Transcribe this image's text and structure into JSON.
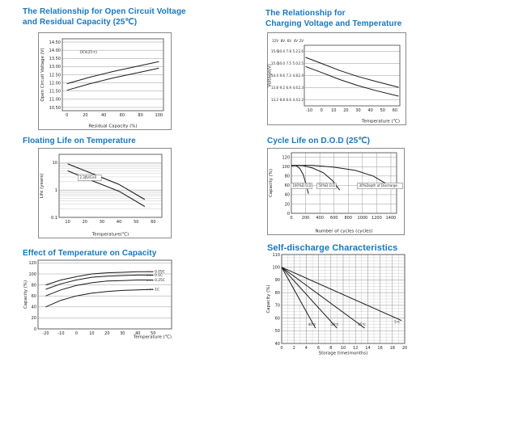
{
  "page": {
    "background": "#ffffff",
    "title_color": "#1777c0"
  },
  "sections": [
    {
      "lines": [
        "The Relationship for Open Circuit Voltage",
        "and Residual Capacity (25℃)"
      ]
    },
    {
      "lines": [
        "The Relationship for",
        "Charging Voltage and Temperature"
      ]
    },
    {
      "lines": [
        "Floating Life on Temperature"
      ]
    },
    {
      "lines": [
        "Cycle Life on D.O.D (25℃)"
      ]
    },
    {
      "lines": [
        "Effect of Temperature on Capacity"
      ]
    },
    {
      "lines": [
        "Self-discharge Characteristics"
      ]
    }
  ],
  "chart_data": [
    {
      "id": "c1",
      "type": "line",
      "title": "The Relationship for Open Circuit Voltage and Residual Capacity (25℃)",
      "xlabel": "Residual Capacity (%)",
      "ylabel": "Open Circuit Voltage (V)",
      "xlim": [
        -5,
        105
      ],
      "ylim": [
        10.3,
        14.7
      ],
      "xticks": [
        0,
        20,
        40,
        60,
        80,
        100
      ],
      "yticks": [
        14.5,
        14.0,
        13.5,
        13.0,
        12.5,
        12.0,
        11.5,
        11.0,
        10.5
      ],
      "ytick_labels": [
        "14.50",
        "14.00",
        "13.50",
        "13.00",
        "12.50",
        "12.00",
        "11.50",
        "11.00",
        "10.50"
      ],
      "grid": {
        "h_ticks": true
      },
      "series": [
        {
          "name": "upper",
          "points": [
            [
              0,
              11.95
            ],
            [
              25,
              12.35
            ],
            [
              50,
              12.7
            ],
            [
              75,
              13.0
            ],
            [
              100,
              13.3
            ]
          ]
        },
        {
          "name": "lower",
          "points": [
            [
              0,
              11.55
            ],
            [
              25,
              11.95
            ],
            [
              50,
              12.3
            ],
            [
              75,
              12.6
            ],
            [
              100,
              12.9
            ]
          ]
        }
      ],
      "annotations": [
        {
          "x": 14,
          "y": 13.8,
          "text": "OCV(25℃)",
          "fs": 4
        }
      ],
      "layout": {
        "outer_box": true,
        "margin": {
          "l": 30,
          "t": 8,
          "r": 10,
          "b": 24
        },
        "ylabel_x": 7
      }
    },
    {
      "id": "c2",
      "type": "line",
      "title": "The Relationship for Charging Voltage and Temperature",
      "xlabel": "Temperature (℃)",
      "ylabel": "Voltage(V)",
      "xlim": [
        -14,
        64
      ],
      "ylim": [
        12.9,
        15.9
      ],
      "xticks": [
        -10,
        0,
        10,
        20,
        30,
        40,
        50,
        60
      ],
      "yticks": [
        15.6,
        15.0,
        14.4,
        13.8,
        13.2
      ],
      "ytick_cols_header": [
        "12V",
        "8V",
        "6V",
        "4V",
        "2V"
      ],
      "ytick_rows": [
        [
          "15.6",
          "10.4",
          "7.8",
          "5.2",
          "2.6"
        ],
        [
          "15.0",
          "10.0",
          "7.5",
          "5.0",
          "2.5"
        ],
        [
          "14.4",
          "9.6",
          "7.2",
          "4.8",
          "2.4"
        ],
        [
          "13.8",
          "9.2",
          "6.9",
          "4.6",
          "2.3"
        ],
        [
          "13.2",
          "8.8",
          "6.6",
          "4.4",
          "2.2"
        ]
      ],
      "grid": {
        "h_ticks": true
      },
      "series": [
        {
          "name": "cycle use",
          "points": [
            [
              -13,
              15.3
            ],
            [
              0,
              15.0
            ],
            [
              15,
              14.65
            ],
            [
              30,
              14.35
            ],
            [
              45,
              14.1
            ],
            [
              63,
              13.82
            ]
          ]
        },
        {
          "name": "standby use",
          "points": [
            [
              -13,
              14.85
            ],
            [
              0,
              14.55
            ],
            [
              15,
              14.2
            ],
            [
              30,
              13.9
            ],
            [
              45,
              13.65
            ],
            [
              63,
              13.38
            ]
          ]
        }
      ],
      "annotations": [],
      "layout": {
        "outer_box": true,
        "margin": {
          "l": 46,
          "t": 16,
          "r": 8,
          "b": 24
        },
        "col_x": [
          14,
          22,
          30,
          38,
          45
        ],
        "header_y": 12,
        "ylabel_x": 4.5,
        "xlabel_end": true
      }
    },
    {
      "id": "c3",
      "type": "line",
      "title": "Floating Life on Temperature",
      "xlabel": "Temperature(℃)",
      "ylabel": "Life (years)",
      "xlim": [
        5,
        65
      ],
      "ylim": [
        0.1,
        20
      ],
      "yscale": "log",
      "xticks": [
        10,
        20,
        30,
        40,
        50,
        60
      ],
      "yticks": [
        10,
        1,
        0.1
      ],
      "ytick_labels": [
        "10",
        "1",
        "0.1"
      ],
      "grid": {
        "h_ticks": true,
        "log_minor": true
      },
      "series": [
        {
          "name": "upper",
          "points": [
            [
              10,
              9
            ],
            [
              25,
              3.8
            ],
            [
              40,
              1.6
            ],
            [
              55,
              0.45
            ]
          ],
          "width": 1.1
        },
        {
          "name": "lower",
          "points": [
            [
              10,
              5
            ],
            [
              25,
              2.1
            ],
            [
              40,
              0.9
            ],
            [
              55,
              0.25
            ]
          ],
          "width": 1.1
        }
      ],
      "annotations": [
        {
          "x": 17,
          "y": 2.6,
          "text": "2.30V/Cell",
          "fs": 4,
          "box": true
        }
      ],
      "layout": {
        "outer_box": true,
        "margin": {
          "l": 26,
          "t": 8,
          "r": 12,
          "b": 26
        },
        "ylabel_x": 6
      }
    },
    {
      "id": "c4",
      "type": "line",
      "title": "Cycle Life on D.O.D (25℃)",
      "xlabel": "Number of cycles (cycles)",
      "ylabel": "Capacity (%)",
      "xlim": [
        0,
        1480
      ],
      "ylim": [
        0,
        130
      ],
      "xticks": [
        0,
        200,
        400,
        600,
        800,
        1000,
        1200,
        1400
      ],
      "yticks": [
        0,
        20,
        40,
        60,
        80,
        100,
        120
      ],
      "grid": {
        "h_ticks": true,
        "v_ticks": true
      },
      "series": [
        {
          "name": "100% D.O.D",
          "points": [
            [
              0,
              102
            ],
            [
              60,
              103
            ],
            [
              120,
              96
            ],
            [
              170,
              82
            ],
            [
              210,
              60
            ],
            [
              240,
              42
            ]
          ]
        },
        {
          "name": "50% D.O.D",
          "points": [
            [
              0,
              102
            ],
            [
              150,
              103
            ],
            [
              300,
              97
            ],
            [
              450,
              87
            ],
            [
              580,
              70
            ],
            [
              680,
              50
            ]
          ]
        },
        {
          "name": "30% D.O.D",
          "points": [
            [
              0,
              103
            ],
            [
              300,
              103
            ],
            [
              600,
              99
            ],
            [
              900,
              92
            ],
            [
              1150,
              80
            ],
            [
              1350,
              62
            ],
            [
              1430,
              52
            ]
          ]
        }
      ],
      "annotations": [
        {
          "x": 15,
          "y": 57,
          "text": "100%D.O.D",
          "fs": 4,
          "box": true
        },
        {
          "x": 380,
          "y": 57,
          "text": "50%D.O.D",
          "fs": 4,
          "box": true
        },
        {
          "x": 950,
          "y": 57,
          "text": "30%Depth of Discharge",
          "fs": 4,
          "box": true
        }
      ],
      "layout": {
        "outer_box": true,
        "margin": {
          "l": 30,
          "t": 6,
          "r": 10,
          "b": 27
        },
        "ylabel_x": 6
      }
    },
    {
      "id": "c5",
      "type": "line",
      "title": "Effect of Temperature on Capacity",
      "xlabel": "Temperature  (℃)",
      "ylabel": "Capacity (%)",
      "xlim": [
        -25,
        62
      ],
      "ylim": [
        0,
        125
      ],
      "xticks": [
        -20,
        -10,
        0,
        10,
        20,
        30,
        40,
        50
      ],
      "yticks": [
        0,
        20,
        40,
        60,
        80,
        100,
        120
      ],
      "grid": {
        "h_ticks": true
      },
      "series": [
        {
          "name": "0.05C",
          "points": [
            [
              -20,
              80
            ],
            [
              -10,
              89
            ],
            [
              0,
              95
            ],
            [
              10,
              100
            ],
            [
              20,
              102
            ],
            [
              30,
              103
            ],
            [
              40,
              104
            ],
            [
              50,
              104
            ]
          ]
        },
        {
          "name": "0.1C",
          "points": [
            [
              -20,
              72
            ],
            [
              -10,
              82
            ],
            [
              0,
              89
            ],
            [
              10,
              94
            ],
            [
              20,
              96
            ],
            [
              30,
              97
            ],
            [
              40,
              98
            ],
            [
              50,
              98
            ]
          ]
        },
        {
          "name": "0.25C",
          "points": [
            [
              -20,
              60
            ],
            [
              -10,
              71
            ],
            [
              0,
              79
            ],
            [
              10,
              84
            ],
            [
              20,
              87
            ],
            [
              30,
              88
            ],
            [
              40,
              89
            ],
            [
              50,
              89
            ]
          ]
        },
        {
          "name": "1C",
          "points": [
            [
              -20,
              40
            ],
            [
              -10,
              52
            ],
            [
              0,
              60
            ],
            [
              10,
              65
            ],
            [
              20,
              68
            ],
            [
              30,
              70
            ],
            [
              40,
              71
            ],
            [
              50,
              72
            ]
          ]
        }
      ],
      "annotations": [
        {
          "x": 51,
          "y": 102.5,
          "text": "0.05C",
          "fs": 4.3,
          "dash": true
        },
        {
          "x": 51,
          "y": 95.5,
          "text": "0.1C",
          "fs": 4.3,
          "dash": true
        },
        {
          "x": 51,
          "y": 86.5,
          "text": "0.25C",
          "fs": 4.3,
          "dash": true
        },
        {
          "x": 51,
          "y": 69.5,
          "text": "1C",
          "fs": 4.3,
          "dash": true
        }
      ],
      "layout": {
        "outer_box": false,
        "margin": {
          "l": 19,
          "t": 3,
          "r": 11,
          "b": 15
        },
        "ylabel_x": 5,
        "xlabel_end": true
      }
    },
    {
      "id": "c6",
      "type": "line",
      "title": "Self-discharge Characteristics",
      "xlabel": "Storage time(months)",
      "ylabel": "Capacity (%)",
      "xlim": [
        0,
        20
      ],
      "ylim": [
        40,
        110
      ],
      "xticks": [
        0,
        2,
        4,
        6,
        8,
        10,
        12,
        14,
        16,
        18,
        20
      ],
      "yticks": [
        40,
        50,
        60,
        70,
        80,
        90,
        100,
        110
      ],
      "grid": {
        "h_ticks": true,
        "v_ticks": true,
        "h_step": 2.5,
        "v_step": 1
      },
      "series": [
        {
          "name": "40℃",
          "points": [
            [
              0,
              100
            ],
            [
              5.5,
              52
            ]
          ]
        },
        {
          "name": "30℃",
          "points": [
            [
              0,
              100
            ],
            [
              9,
              52
            ]
          ]
        },
        {
          "name": "25℃",
          "points": [
            [
              0,
              100
            ],
            [
              13.5,
              52
            ]
          ]
        },
        {
          "name": "5℃",
          "points": [
            [
              0,
              100
            ],
            [
              19.5,
              58
            ]
          ]
        }
      ],
      "annotations": [
        {
          "x": 4.3,
          "y": 54,
          "text": "40℃",
          "fs": 4
        },
        {
          "x": 8,
          "y": 54,
          "text": "30℃",
          "fs": 4
        },
        {
          "x": 12.4,
          "y": 54,
          "text": "25℃",
          "fs": 4
        },
        {
          "x": 18.3,
          "y": 56,
          "text": "5℃",
          "fs": 4
        }
      ],
      "layout": {
        "outer_box": false,
        "margin": {
          "l": 20,
          "t": 3,
          "r": 8,
          "b": 17
        },
        "ylabel_x": 5
      }
    }
  ]
}
